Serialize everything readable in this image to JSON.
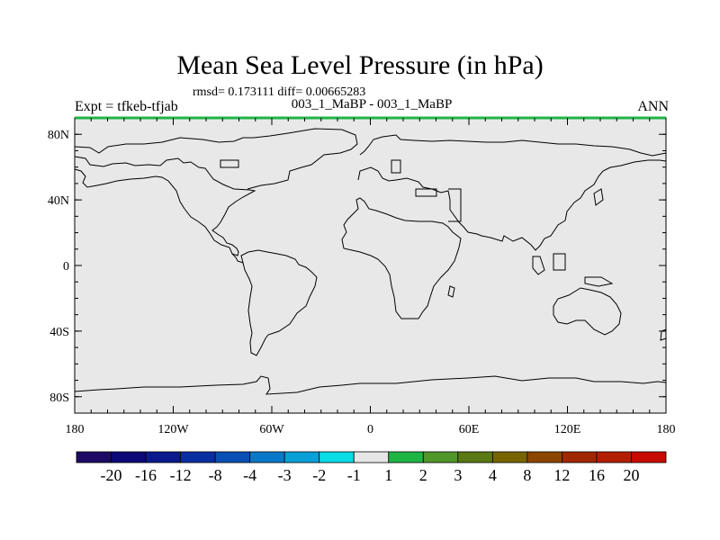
{
  "title": "Mean Sea Level Pressure (in hPa)",
  "stats_line": "rmsd= 0.173111 diff= 0.00665283",
  "left_label": "Expt = tfkeb-tfjab",
  "center_label": "003_1_MaBP - 003_1_MaBP",
  "right_label": "ANN",
  "map": {
    "projection": "cylindrical-equidistant",
    "lon_range": [
      -180,
      180
    ],
    "lat_range": [
      -90,
      90
    ],
    "background_color": "#e8e8e8",
    "coastline_color": "#000000",
    "lat_ticks": [
      {
        "value": 80,
        "label": "80N"
      },
      {
        "value": 40,
        "label": "40N"
      },
      {
        "value": 0,
        "label": "0"
      },
      {
        "value": -40,
        "label": "40S"
      },
      {
        "value": -80,
        "label": "80S"
      }
    ],
    "lon_ticks": [
      {
        "value": -180,
        "label": "180"
      },
      {
        "value": -120,
        "label": "120W"
      },
      {
        "value": -60,
        "label": "60W"
      },
      {
        "value": 0,
        "label": "0"
      },
      {
        "value": 60,
        "label": "60E"
      },
      {
        "value": 120,
        "label": "120E"
      },
      {
        "value": 180,
        "label": "180"
      }
    ]
  },
  "colorbar": {
    "colors": [
      "#1e0a64",
      "#0c0878",
      "#0a1a8c",
      "#0a2ea0",
      "#0a50b4",
      "#0a78c8",
      "#0aa0d8",
      "#0adce6",
      "#e6e6e6",
      "#1eb446",
      "#50962a",
      "#5a7814",
      "#786400",
      "#8c4600",
      "#a02800",
      "#b41e00",
      "#c80a00"
    ],
    "labels": [
      "-20",
      "-16",
      "-12",
      "-8",
      "-4",
      "-3",
      "-2",
      "-1",
      "1",
      "2",
      "3",
      "4",
      "8",
      "12",
      "16",
      "20"
    ]
  }
}
